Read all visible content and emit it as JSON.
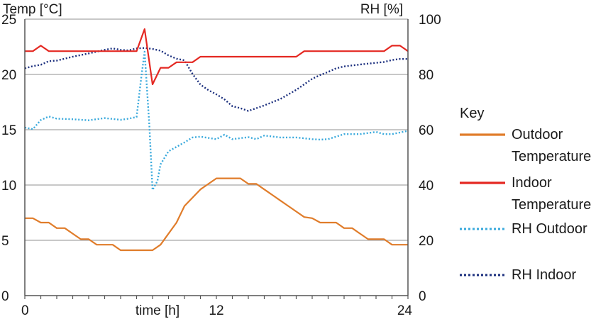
{
  "chart_data": {
    "type": "line",
    "y_left_label": "Temp [°C]",
    "y_right_label": "RH [%]",
    "xlabel": "time [h]",
    "xlim": [
      0,
      24
    ],
    "ylim_left": [
      0,
      25
    ],
    "ylim_right": [
      0,
      100
    ],
    "x_ticks": [
      0,
      12,
      24
    ],
    "x_tick_labels": [
      "0",
      "12",
      "24"
    ],
    "y_left_ticks": [
      0,
      5,
      10,
      15,
      20,
      25
    ],
    "y_left_tick_labels": [
      "0",
      "5",
      "10",
      "15",
      "20",
      "25"
    ],
    "y_right_ticks": [
      0,
      20,
      40,
      60,
      80,
      100
    ],
    "y_right_tick_labels": [
      "0",
      "20",
      "40",
      "60",
      "80",
      "100"
    ],
    "gridlines_left": [
      5,
      10,
      15,
      20,
      25
    ],
    "legend_title": "Key",
    "series": [
      {
        "name": "Outdoor Temperature",
        "legend_lines": [
          "Outdoor",
          "Temperature"
        ],
        "axis": "left",
        "color": "#e07c2a",
        "style": "solid",
        "x": [
          0,
          0.5,
          1,
          1.5,
          2,
          2.5,
          3,
          3.5,
          4,
          4.5,
          5,
          5.5,
          6,
          6.5,
          7,
          7.5,
          8,
          8.5,
          9,
          9.5,
          10,
          11,
          11.5,
          12,
          12.5,
          13,
          13.5,
          14,
          14.5,
          15,
          15.5,
          16,
          16.5,
          17,
          17.5,
          18,
          18.5,
          19,
          19.5,
          20,
          20.5,
          21,
          21.5,
          22,
          22.5,
          23,
          23.5,
          24
        ],
        "values": [
          7.0,
          7.0,
          6.6,
          6.6,
          6.1,
          6.1,
          5.6,
          5.1,
          5.1,
          4.6,
          4.6,
          4.6,
          4.1,
          4.1,
          4.1,
          4.1,
          4.1,
          4.6,
          5.6,
          6.6,
          8.1,
          9.6,
          10.1,
          10.6,
          10.6,
          10.6,
          10.6,
          10.1,
          10.1,
          9.6,
          9.1,
          8.6,
          8.1,
          7.6,
          7.1,
          7.0,
          6.6,
          6.6,
          6.6,
          6.1,
          6.1,
          5.6,
          5.1,
          5.1,
          5.1,
          4.6,
          4.6,
          4.6
        ]
      },
      {
        "name": "Indoor Temperature",
        "legend_lines": [
          "Indoor",
          "Temperature"
        ],
        "axis": "left",
        "color": "#e42822",
        "style": "solid",
        "x": [
          0,
          0.5,
          1,
          1.5,
          2,
          6.5,
          7,
          7.5,
          8,
          8.5,
          9,
          9.5,
          10,
          10.5,
          11,
          17,
          17.5,
          22.5,
          23,
          23.5,
          24
        ],
        "values": [
          22.1,
          22.1,
          22.6,
          22.1,
          22.1,
          22.1,
          22.1,
          24.1,
          19.1,
          20.6,
          20.6,
          21.1,
          21.1,
          21.1,
          21.6,
          21.6,
          22.1,
          22.1,
          22.6,
          22.6,
          22.1
        ]
      },
      {
        "name": "RH Outdoor",
        "legend_lines": [
          "RH Outdoor"
        ],
        "axis": "right",
        "color": "#39a9dc",
        "style": "dotted",
        "x": [
          0,
          0.5,
          1,
          1.5,
          2,
          3,
          4,
          5,
          6,
          6.5,
          7,
          7.3,
          7.5,
          7.8,
          8,
          8.3,
          8.5,
          9,
          10,
          10.5,
          11,
          12,
          12.5,
          13,
          14,
          14.5,
          15,
          16,
          17,
          18,
          18.5,
          19,
          20,
          21,
          22,
          22.5,
          23,
          24
        ],
        "values": [
          60.8,
          60.2,
          63.5,
          64.8,
          64.0,
          63.8,
          63.4,
          64.2,
          63.6,
          64.0,
          64.6,
          79.3,
          88.2,
          61.6,
          38.2,
          41.4,
          47.5,
          52.2,
          55.4,
          57.2,
          57.5,
          56.6,
          58.2,
          56.6,
          57.3,
          56.6,
          57.9,
          57.2,
          57.2,
          56.6,
          56.4,
          56.6,
          58.4,
          58.4,
          59.2,
          58.4,
          58.4,
          59.6
        ]
      },
      {
        "name": "RH Indoor",
        "legend_lines": [
          "RH Indoor"
        ],
        "axis": "right",
        "color": "#1b2f7e",
        "style": "dotted",
        "x": [
          0,
          0.5,
          1,
          1.5,
          2,
          3,
          4,
          5,
          5.5,
          6,
          6.5,
          7,
          7.5,
          8,
          8.5,
          9,
          9.5,
          10,
          10.5,
          11,
          11.5,
          12,
          12.5,
          13,
          13.5,
          14,
          14.5,
          15,
          16,
          17,
          18,
          18.5,
          19,
          19.5,
          20,
          21,
          22,
          22.5,
          23,
          23.5,
          24
        ],
        "values": [
          82.2,
          83.0,
          83.5,
          84.8,
          85.0,
          86.4,
          87.6,
          88.9,
          89.4,
          88.9,
          88.7,
          89.4,
          89.6,
          89.2,
          88.6,
          86.9,
          85.7,
          85.1,
          80.2,
          76.3,
          74.3,
          72.8,
          71.0,
          68.5,
          67.8,
          66.8,
          67.8,
          68.8,
          71.1,
          74.4,
          78.4,
          79.8,
          80.9,
          82.2,
          82.9,
          83.6,
          84.2,
          84.5,
          85.2,
          85.6,
          85.6
        ]
      }
    ]
  }
}
